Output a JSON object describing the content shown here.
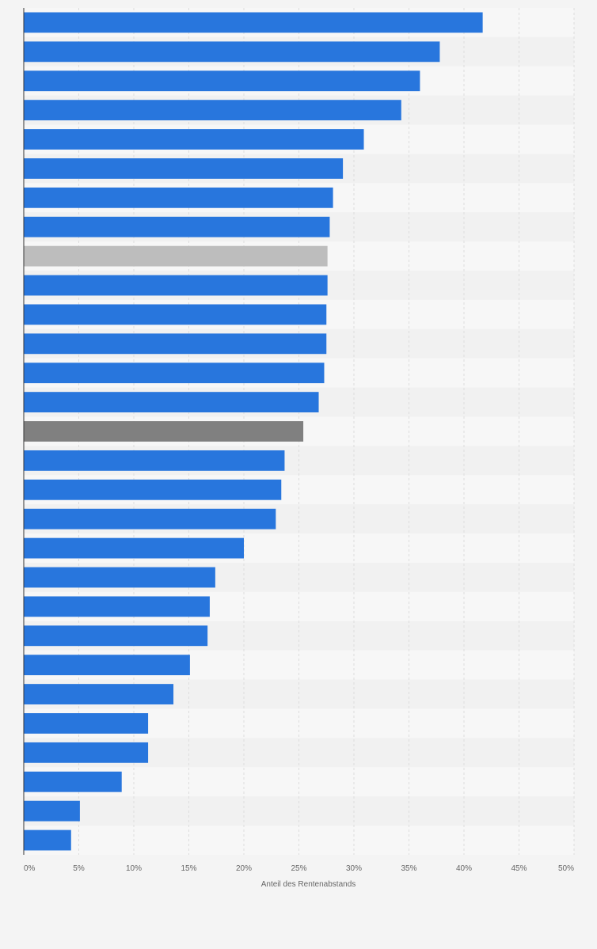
{
  "chart_data": {
    "type": "bar",
    "orientation": "horizontal",
    "xlabel": "Anteil des Rentenabstands",
    "xlim": [
      0,
      50
    ],
    "x_ticks": [
      "0%",
      "5%",
      "10%",
      "15%",
      "20%",
      "25%",
      "30%",
      "35%",
      "40%",
      "45%",
      "50%"
    ],
    "grid": true,
    "colors": {
      "default": "#2876dd",
      "light_gray": "#bdbdbd",
      "dark_gray": "#808080",
      "band_light": "#f7f7f7",
      "band_dark": "#f1f1f1",
      "gridline": "#dddddd",
      "axis": "#333333"
    },
    "values": [
      41.7,
      37.8,
      36.0,
      34.3,
      30.9,
      29.0,
      28.1,
      27.8,
      27.6,
      27.6,
      27.5,
      27.5,
      27.3,
      26.8,
      25.4,
      23.7,
      23.4,
      22.9,
      20.0,
      17.4,
      16.9,
      16.7,
      15.1,
      13.6,
      11.3,
      11.3,
      8.9,
      5.1,
      4.3
    ],
    "bar_colors": [
      "default",
      "default",
      "default",
      "default",
      "default",
      "default",
      "default",
      "default",
      "light_gray",
      "default",
      "default",
      "default",
      "default",
      "default",
      "dark_gray",
      "default",
      "default",
      "default",
      "default",
      "default",
      "default",
      "default",
      "default",
      "default",
      "default",
      "default",
      "default",
      "default",
      "default"
    ]
  }
}
